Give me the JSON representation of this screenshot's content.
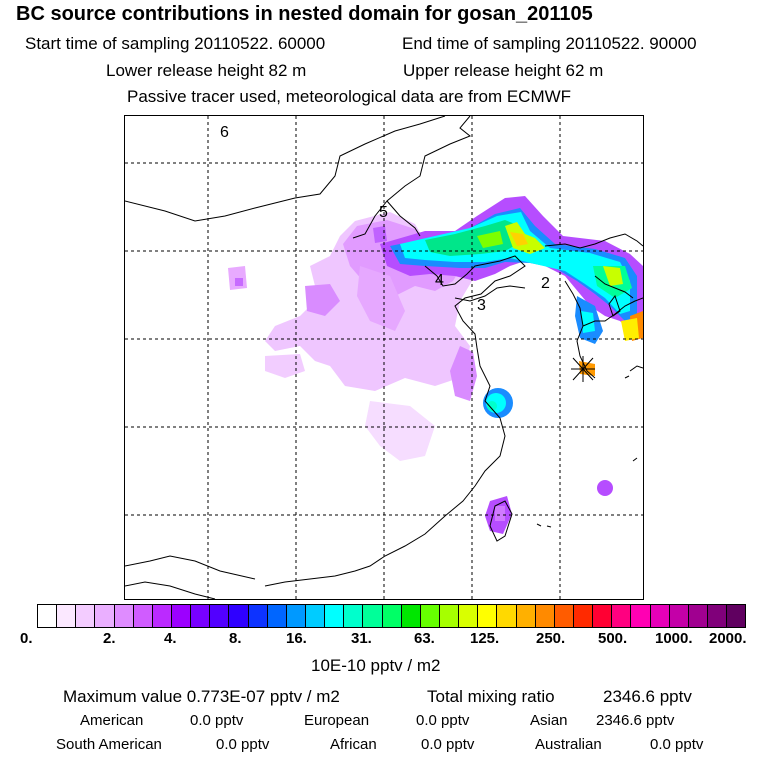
{
  "title": "BC  source contributions in nested domain for gosan_201105",
  "header": {
    "start_time": "Start time of sampling 20110522. 60000",
    "end_time": "End time of sampling 20110522. 90000",
    "lower_release": "Lower release height   82 m",
    "upper_release": "Upper release height   62 m",
    "tracer_note": "Passive tracer used, meteorological data are from ECMWF"
  },
  "map": {
    "region_labels": [
      "6",
      "5",
      "4",
      "3",
      "2"
    ]
  },
  "colorbar": {
    "ticks": [
      "0.",
      "2.",
      "4.",
      "8.",
      "16.",
      "31.",
      "63.",
      "125.",
      "250.",
      "500.",
      "1000.",
      "2000."
    ],
    "colors": [
      "#ffffff",
      "#fbe8ff",
      "#f3ccff",
      "#eaafff",
      "#df8cff",
      "#d05cff",
      "#bb2aff",
      "#9c00ff",
      "#7800ff",
      "#5200ff",
      "#2f00ff",
      "#0d33ff",
      "#0066ff",
      "#0099ff",
      "#00ccff",
      "#00ffff",
      "#00ffcc",
      "#00ff99",
      "#00ff66",
      "#00e600",
      "#66ff00",
      "#a6ff00",
      "#d9ff00",
      "#ffff00",
      "#ffd900",
      "#ffb000",
      "#ff8a00",
      "#ff5c00",
      "#ff2a00",
      "#ff0033",
      "#ff0080",
      "#ff00b3",
      "#e600b8",
      "#c400a8",
      "#a00090",
      "#80007a",
      "#600060"
    ],
    "unit": "10E-10 pptv / m2"
  },
  "summary": {
    "max_label": "Maximum value  0.773E-07 pptv / m2",
    "total_label": "Total mixing ratio",
    "total_value": "2346.6 pptv",
    "rows": [
      [
        [
          "American",
          "0.0 pptv"
        ],
        [
          "European",
          "0.0 pptv"
        ],
        [
          "Asian",
          "2346.6 pptv"
        ]
      ],
      [
        [
          "South American",
          "0.0 pptv"
        ],
        [
          "African",
          "0.0 pptv"
        ],
        [
          "Australian",
          "0.0 pptv"
        ]
      ]
    ]
  }
}
